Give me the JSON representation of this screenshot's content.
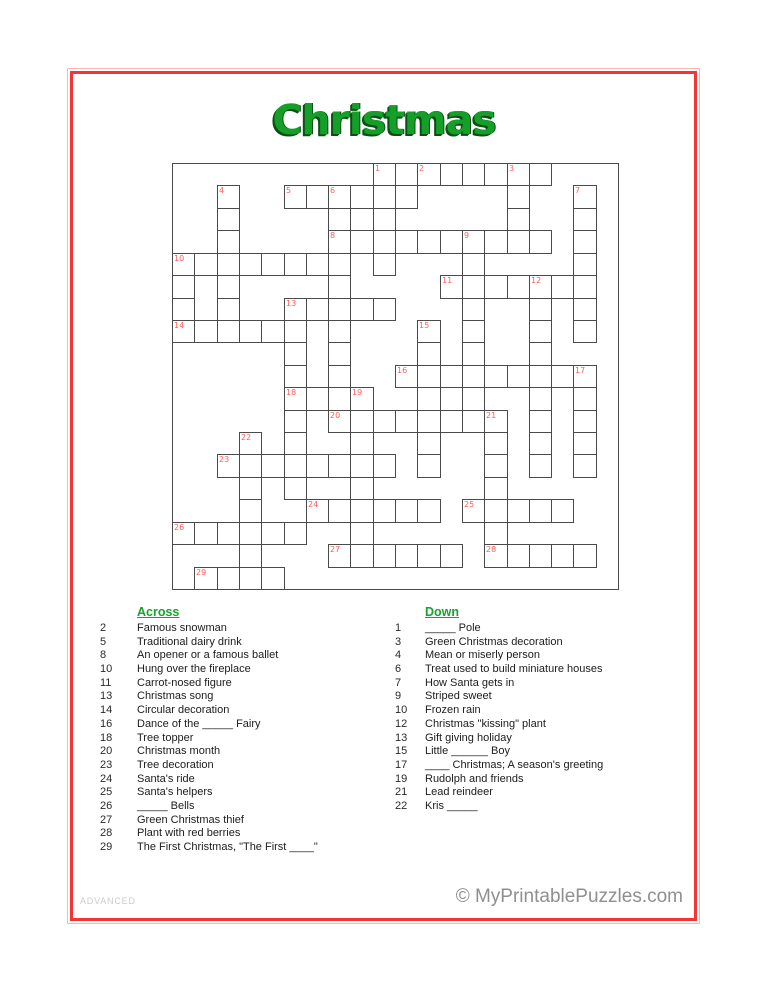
{
  "title": {
    "text": "Christmas",
    "color": "#14a028",
    "shadow_color": "#0a4f13"
  },
  "frame": {
    "inner_color": "#f23535",
    "outer_color": "#ffb3b3"
  },
  "grid": {
    "cols": 20,
    "rows": 19,
    "line_color": "#4a4a4a",
    "number_color": "#ff5b5b",
    "h_runs": [
      {
        "row": 0,
        "c1": 9,
        "c2": 16
      },
      {
        "row": 1,
        "c1": 5,
        "c2": 10
      },
      {
        "row": 3,
        "c1": 7,
        "c2": 16
      },
      {
        "row": 4,
        "c1": 0,
        "c2": 7
      },
      {
        "row": 5,
        "c1": 12,
        "c2": 18
      },
      {
        "row": 6,
        "c1": 5,
        "c2": 9
      },
      {
        "row": 7,
        "c1": 0,
        "c2": 5
      },
      {
        "row": 9,
        "c1": 10,
        "c2": 18
      },
      {
        "row": 10,
        "c1": 5,
        "c2": 8
      },
      {
        "row": 11,
        "c1": 7,
        "c2": 14
      },
      {
        "row": 13,
        "c1": 2,
        "c2": 9
      },
      {
        "row": 15,
        "c1": 6,
        "c2": 11
      },
      {
        "row": 15,
        "c1": 13,
        "c2": 17
      },
      {
        "row": 16,
        "c1": 0,
        "c2": 5
      },
      {
        "row": 17,
        "c1": 7,
        "c2": 12
      },
      {
        "row": 17,
        "c1": 14,
        "c2": 18
      },
      {
        "row": 18,
        "c1": 1,
        "c2": 4
      }
    ],
    "v_runs": [
      {
        "col": 0,
        "r1": 4,
        "r2": 7
      },
      {
        "col": 2,
        "r1": 1,
        "r2": 7
      },
      {
        "col": 3,
        "r1": 12,
        "r2": 18
      },
      {
        "col": 5,
        "r1": 6,
        "r2": 14
      },
      {
        "col": 7,
        "r1": 1,
        "r2": 11
      },
      {
        "col": 8,
        "r1": 10,
        "r2": 17
      },
      {
        "col": 9,
        "r1": 0,
        "r2": 4
      },
      {
        "col": 10,
        "r1": 0,
        "r2": 1
      },
      {
        "col": 11,
        "r1": 7,
        "r2": 13
      },
      {
        "col": 13,
        "r1": 3,
        "r2": 11
      },
      {
        "col": 14,
        "r1": 11,
        "r2": 17
      },
      {
        "col": 15,
        "r1": 0,
        "r2": 3
      },
      {
        "col": 16,
        "r1": 5,
        "r2": 13
      },
      {
        "col": 18,
        "r1": 1,
        "r2": 7
      },
      {
        "col": 18,
        "r1": 9,
        "r2": 13
      }
    ],
    "numbers": [
      {
        "n": "1",
        "col": 9,
        "row": 0
      },
      {
        "n": "2",
        "col": 11,
        "row": 0
      },
      {
        "n": "3",
        "col": 15,
        "row": 0
      },
      {
        "n": "4",
        "col": 2,
        "row": 1
      },
      {
        "n": "5",
        "col": 5,
        "row": 1
      },
      {
        "n": "6",
        "col": 7,
        "row": 1
      },
      {
        "n": "7",
        "col": 18,
        "row": 1
      },
      {
        "n": "8",
        "col": 7,
        "row": 3
      },
      {
        "n": "9",
        "col": 13,
        "row": 3
      },
      {
        "n": "10",
        "col": 0,
        "row": 4
      },
      {
        "n": "11",
        "col": 12,
        "row": 5
      },
      {
        "n": "12",
        "col": 16,
        "row": 5
      },
      {
        "n": "13",
        "col": 5,
        "row": 6
      },
      {
        "n": "14",
        "col": 0,
        "row": 7
      },
      {
        "n": "15",
        "col": 11,
        "row": 7
      },
      {
        "n": "16",
        "col": 10,
        "row": 9
      },
      {
        "n": "17",
        "col": 18,
        "row": 9
      },
      {
        "n": "18",
        "col": 5,
        "row": 10
      },
      {
        "n": "19",
        "col": 8,
        "row": 10
      },
      {
        "n": "20",
        "col": 7,
        "row": 11
      },
      {
        "n": "21",
        "col": 14,
        "row": 11
      },
      {
        "n": "22",
        "col": 3,
        "row": 12
      },
      {
        "n": "23",
        "col": 2,
        "row": 13
      },
      {
        "n": "24",
        "col": 6,
        "row": 15
      },
      {
        "n": "25",
        "col": 13,
        "row": 15
      },
      {
        "n": "26",
        "col": 0,
        "row": 16
      },
      {
        "n": "27",
        "col": 7,
        "row": 17
      },
      {
        "n": "28",
        "col": 14,
        "row": 17
      },
      {
        "n": "29",
        "col": 1,
        "row": 18
      }
    ]
  },
  "clues": {
    "heading_color": "#17a22c",
    "across_heading": "Across",
    "down_heading": "Down",
    "across": [
      {
        "num": "2",
        "text": "Famous snowman"
      },
      {
        "num": "5",
        "text": "Traditional dairy drink"
      },
      {
        "num": "8",
        "text": "An opener or a famous ballet"
      },
      {
        "num": "10",
        "text": "Hung over the fireplace"
      },
      {
        "num": "11",
        "text": "Carrot-nosed figure"
      },
      {
        "num": "13",
        "text": "Christmas song"
      },
      {
        "num": "14",
        "text": "Circular decoration"
      },
      {
        "num": "16",
        "text": "Dance of the _____ Fairy"
      },
      {
        "num": "18",
        "text": "Tree topper"
      },
      {
        "num": "20",
        "text": "Christmas month"
      },
      {
        "num": "23",
        "text": "Tree decoration"
      },
      {
        "num": "24",
        "text": "Santa's ride"
      },
      {
        "num": "25",
        "text": "Santa's helpers"
      },
      {
        "num": "26",
        "text": "_____ Bells"
      },
      {
        "num": "27",
        "text": "Green Christmas thief"
      },
      {
        "num": "28",
        "text": "Plant with red berries"
      },
      {
        "num": "29",
        "text": "The First Christmas, \"The First ____\""
      }
    ],
    "down": [
      {
        "num": "1",
        "text": "_____ Pole"
      },
      {
        "num": "3",
        "text": "Green Christmas decoration"
      },
      {
        "num": "4",
        "text": "Mean or miserly person"
      },
      {
        "num": "6",
        "text": "Treat used to build miniature houses"
      },
      {
        "num": "7",
        "text": "How Santa gets in"
      },
      {
        "num": "9",
        "text": "Striped sweet"
      },
      {
        "num": "10",
        "text": "Frozen rain"
      },
      {
        "num": "12",
        "text": "Christmas \"kissing\" plant"
      },
      {
        "num": "13",
        "text": "Gift giving holiday"
      },
      {
        "num": "15",
        "text": "Little ______ Boy"
      },
      {
        "num": "17",
        "text": "____ Christmas; A season's greeting"
      },
      {
        "num": "19",
        "text": "Rudolph and friends"
      },
      {
        "num": "21",
        "text": "Lead reindeer"
      },
      {
        "num": "22",
        "text": "Kris _____"
      }
    ]
  },
  "footer": {
    "level": "ADVANCED",
    "copyright": "© MyPrintablePuzzles.com"
  }
}
